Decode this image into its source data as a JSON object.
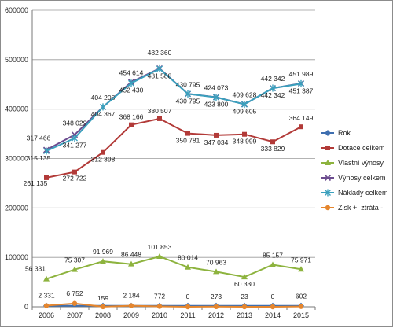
{
  "chart_data": {
    "type": "line",
    "categories": [
      "2006",
      "2007",
      "2008",
      "2009",
      "2010",
      "2011",
      "2012",
      "2013",
      "2014",
      "2015"
    ],
    "ylim": [
      0,
      600000
    ],
    "yticks": [
      0,
      100000,
      200000,
      300000,
      400000,
      500000,
      600000
    ],
    "ytick_labels": [
      "0",
      "100000",
      "200000",
      "300000",
      "400000",
      "500000",
      "600000"
    ],
    "grid": "horizontal",
    "legend_position": "right",
    "series": [
      {
        "name": "Rok",
        "color": "#3e6fb0",
        "marker": "diamond",
        "values": [
          2006,
          2007,
          2008,
          2009,
          2010,
          2011,
          2012,
          2013,
          2014,
          2015
        ],
        "labels": []
      },
      {
        "name": "Dotace celkem",
        "color": "#b23a38",
        "marker": "square",
        "values": [
          261135,
          272722,
          312398,
          368166,
          380507,
          350781,
          347034,
          348999,
          333829,
          364149
        ],
        "labels": [
          "261 135",
          "272 722",
          "312 398",
          "368 166",
          "380 507",
          "350 781",
          "347 034",
          "348 999",
          "333 829",
          "364 149"
        ]
      },
      {
        "name": "Vlastní výnosy",
        "color": "#8db33e",
        "marker": "triangle",
        "values": [
          56331,
          75307,
          91969,
          86448,
          101853,
          80014,
          70963,
          60330,
          85157,
          75971
        ],
        "labels": [
          "56 331",
          "75 307",
          "91 969",
          "86 448",
          "101 853",
          "80 014",
          "70 963",
          "60 330",
          "85 157",
          "75 971"
        ]
      },
      {
        "name": "Výnosy celkem",
        "color": "#6c4c8f",
        "marker": "x",
        "values": [
          317466,
          348029,
          404208,
          454614,
          482360,
          430795,
          424073,
          409628,
          442342,
          451989
        ],
        "labels": [
          "317 466",
          "348 029",
          "404 208",
          "454 614",
          "482 360",
          "430 795",
          "424 073",
          "409 628",
          "442 342",
          "451 989"
        ]
      },
      {
        "name": "Náklady celkem",
        "color": "#3aa0bd",
        "marker": "star",
        "values": [
          315135,
          341277,
          404367,
          452430,
          481588,
          430795,
          423800,
          409605,
          442342,
          451387
        ],
        "labels": [
          "315 135",
          "341 277",
          "404 367",
          "452 430",
          "481 588",
          "430 795",
          "423 800",
          "409 605",
          "442 342",
          "451 387"
        ]
      },
      {
        "name": "Zisk +, ztráta -",
        "color": "#e5862e",
        "marker": "circle",
        "values": [
          2331,
          6752,
          159,
          2184,
          772,
          0,
          273,
          23,
          0,
          602
        ],
        "labels": [
          "2 331",
          "6 752",
          "159",
          "2 184",
          "772",
          "0",
          "273",
          "23",
          "0",
          "602"
        ]
      }
    ]
  }
}
